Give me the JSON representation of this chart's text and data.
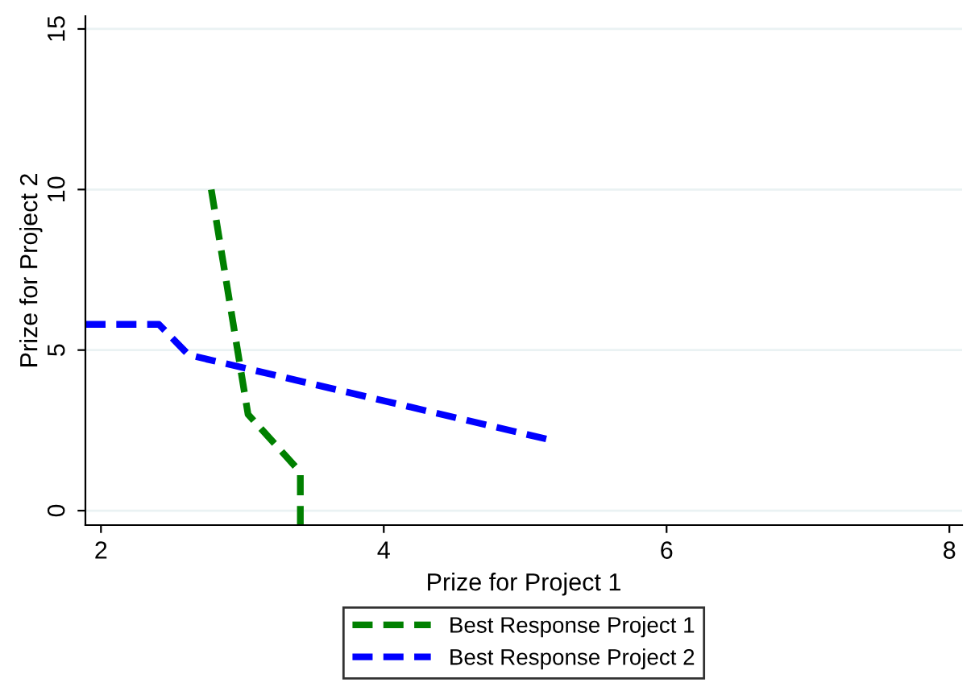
{
  "chart_data": {
    "type": "line",
    "xlabel": "Prize for Project 1",
    "ylabel": "Prize for Project 2",
    "xlim": [
      1.89,
      8.09
    ],
    "ylim": [
      -0.45,
      15.4
    ],
    "xticks": [
      2,
      4,
      6,
      8
    ],
    "yticks": [
      0,
      5,
      10,
      15
    ],
    "grid": "y",
    "legend": "bottom",
    "line_style": "dashed",
    "marker": "none",
    "series": [
      {
        "name": "Best Response Project 1",
        "color": "#008000",
        "x": [
          2.78,
          3.04,
          3.41,
          3.41
        ],
        "values": [
          10,
          3.0,
          1.2,
          -0.45
        ]
      },
      {
        "name": "Best Response Project 2",
        "color": "#0000ff",
        "x": [
          1.89,
          2.41,
          2.62,
          5.18
        ],
        "values": [
          5.8,
          5.8,
          4.85,
          2.2
        ]
      }
    ]
  }
}
